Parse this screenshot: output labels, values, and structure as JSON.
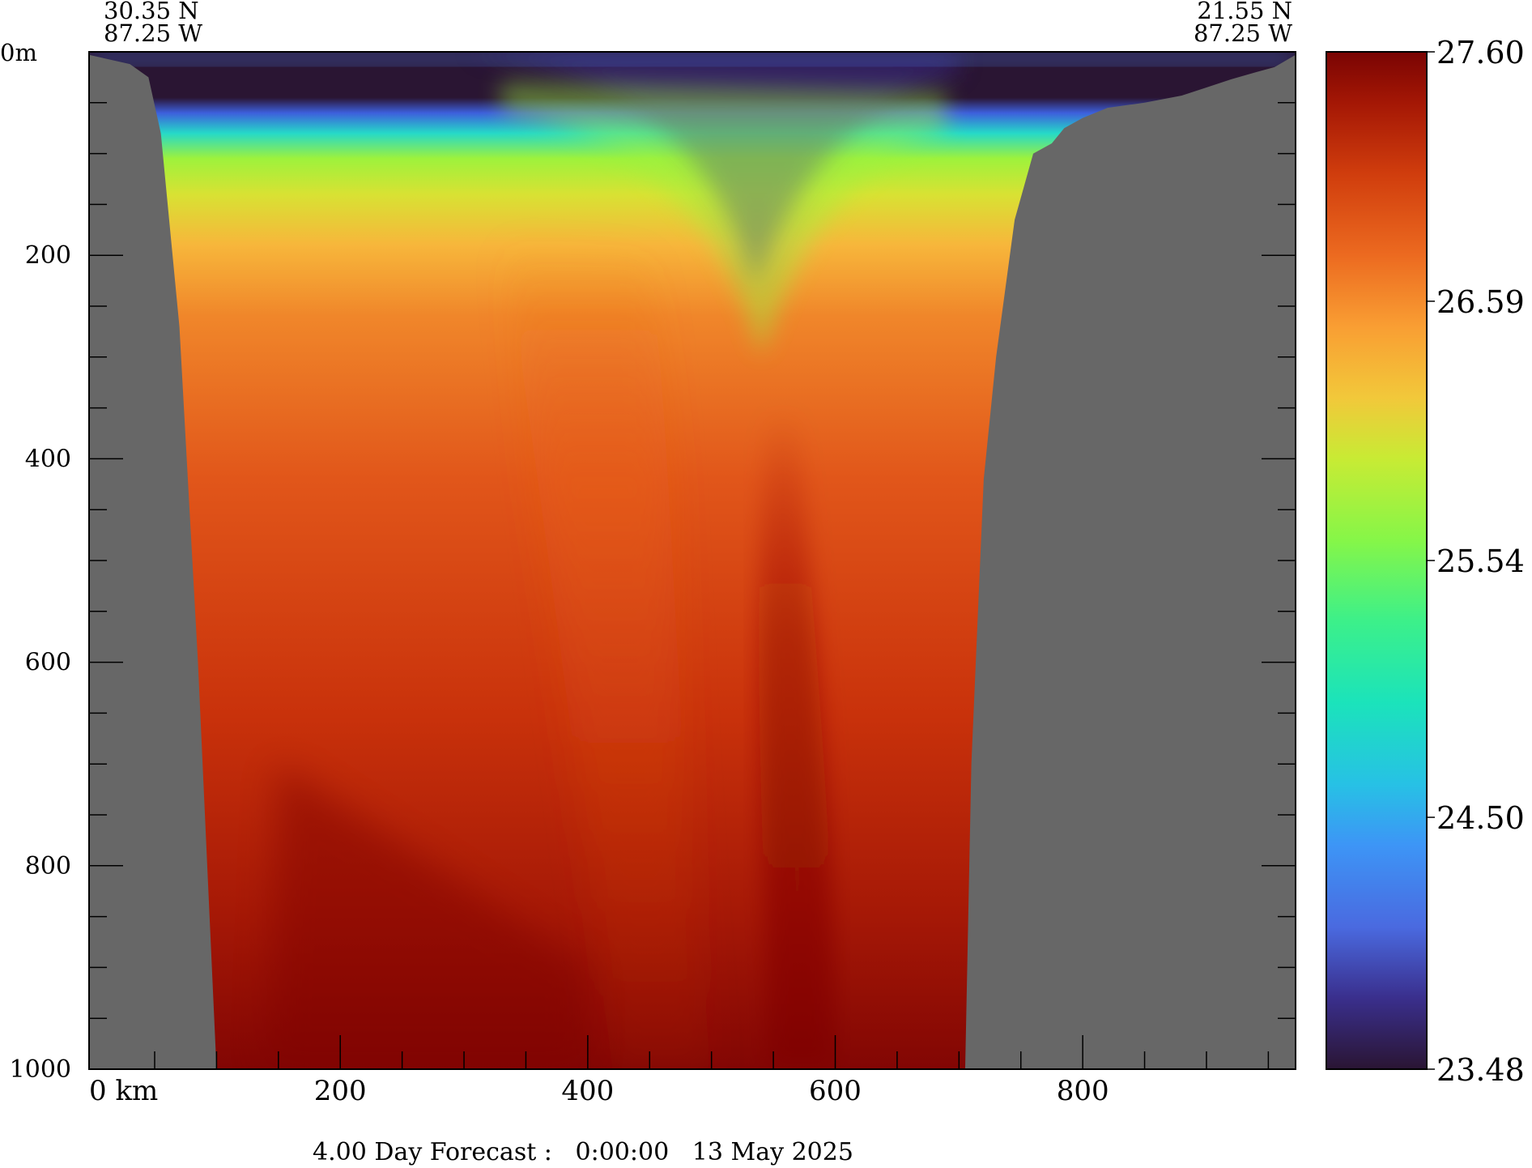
{
  "chart_data": {
    "type": "heatmap",
    "title": "",
    "xlabel": "km",
    "ylabel": "",
    "xlim": [
      -3,
      972
    ],
    "ylim": [
      0,
      1000
    ],
    "depth_unit_label": "0m",
    "x_tick_labels": [
      "0",
      "200",
      "400",
      "600",
      "800"
    ],
    "x_ticks": [
      0,
      200,
      400,
      600,
      800
    ],
    "x_unit_label": "km",
    "y_tick_labels": [
      "200",
      "400",
      "600",
      "800",
      "1000"
    ],
    "y_ticks": [
      200,
      400,
      600,
      800,
      1000
    ],
    "start_point": {
      "lat": "30.35 N",
      "lon": "87.25 W"
    },
    "end_point": {
      "lat": "21.55 N",
      "lon": "87.25 W"
    },
    "colorbar": {
      "min": 23.48,
      "max": 27.6,
      "tick_labels": [
        "27.60",
        "26.59",
        "25.54",
        "24.50",
        "23.48"
      ],
      "tick_values": [
        27.6,
        26.59,
        25.54,
        24.5,
        23.48
      ]
    },
    "bathymetry_depth_m": {
      "distance_km": [
        -3,
        30,
        45,
        55,
        70,
        85,
        100,
        110,
        130,
        140,
        705,
        710,
        720,
        730,
        745,
        760,
        775,
        785,
        800,
        820,
        850,
        880,
        900,
        920,
        940,
        955,
        972
      ],
      "depth": [
        3,
        12,
        25,
        80,
        270,
        600,
        1000,
        1000,
        1000,
        1000,
        1000,
        700,
        420,
        300,
        165,
        100,
        90,
        75,
        65,
        55,
        50,
        43,
        35,
        27,
        20,
        15,
        3
      ]
    },
    "footer": "4.00 Day Forecast :   0:00:00   13 May 2025"
  },
  "colors": {
    "land": "#676767",
    "frame": "#000000",
    "scale": [
      "#2a1533",
      "#3d3597",
      "#4a6ae0",
      "#3fa0f5",
      "#1fd6d6",
      "#25ecae",
      "#5ff55a",
      "#a5f23a",
      "#ddde31",
      "#f9b33a",
      "#f38a2a",
      "#e4571a",
      "#c8300a",
      "#a01504",
      "#7a0403"
    ]
  }
}
